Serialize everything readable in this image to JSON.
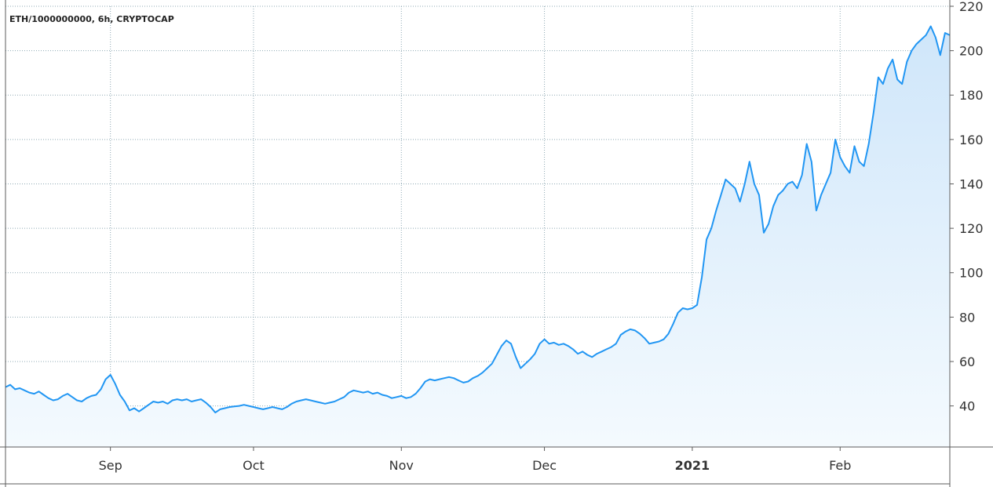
{
  "chart_data": {
    "type": "area",
    "symbol_label": "ETH/1000000000, 6h, CRYPTOCAP",
    "x_tick_labels": [
      {
        "date": "2020-09-01",
        "label": "Sep",
        "bold": false
      },
      {
        "date": "2020-10-01",
        "label": "Oct",
        "bold": false
      },
      {
        "date": "2020-11-01",
        "label": "Nov",
        "bold": false
      },
      {
        "date": "2020-12-01",
        "label": "Dec",
        "bold": false
      },
      {
        "date": "2021-01-01",
        "label": "2021",
        "bold": true
      },
      {
        "date": "2021-02-01",
        "label": "Feb",
        "bold": false
      }
    ],
    "y_ticks": [
      40,
      60,
      80,
      100,
      120,
      140,
      160,
      180,
      200,
      220
    ],
    "xlim": [
      "2020-08-10",
      "2021-02-24"
    ],
    "ylim": [
      21.5,
      220
    ],
    "colors": {
      "line": "#2196f3",
      "fill_top": "#cfe6fa",
      "fill_bottom": "#f4fafe"
    },
    "series": [
      {
        "points": [
          [
            "2020-08-10",
            48.5
          ],
          [
            "2020-08-11",
            49.5
          ],
          [
            "2020-08-12",
            47.5
          ],
          [
            "2020-08-13",
            48.0
          ],
          [
            "2020-08-14",
            47.0
          ],
          [
            "2020-08-15",
            46.0
          ],
          [
            "2020-08-16",
            45.5
          ],
          [
            "2020-08-17",
            46.5
          ],
          [
            "2020-08-18",
            45.0
          ],
          [
            "2020-08-19",
            43.5
          ],
          [
            "2020-08-20",
            42.5
          ],
          [
            "2020-08-21",
            43.0
          ],
          [
            "2020-08-22",
            44.5
          ],
          [
            "2020-08-23",
            45.5
          ],
          [
            "2020-08-24",
            44.0
          ],
          [
            "2020-08-25",
            42.5
          ],
          [
            "2020-08-26",
            42.0
          ],
          [
            "2020-08-27",
            43.5
          ],
          [
            "2020-08-28",
            44.5
          ],
          [
            "2020-08-29",
            45.0
          ],
          [
            "2020-08-30",
            47.5
          ],
          [
            "2020-08-31",
            52.0
          ],
          [
            "2020-09-01",
            54.0
          ],
          [
            "2020-09-02",
            50.0
          ],
          [
            "2020-09-03",
            45.0
          ],
          [
            "2020-09-04",
            42.0
          ],
          [
            "2020-09-05",
            38.0
          ],
          [
            "2020-09-06",
            39.0
          ],
          [
            "2020-09-07",
            37.5
          ],
          [
            "2020-09-08",
            39.0
          ],
          [
            "2020-09-09",
            40.5
          ],
          [
            "2020-09-10",
            42.0
          ],
          [
            "2020-09-11",
            41.5
          ],
          [
            "2020-09-12",
            42.0
          ],
          [
            "2020-09-13",
            41.0
          ],
          [
            "2020-09-14",
            42.5
          ],
          [
            "2020-09-15",
            43.0
          ],
          [
            "2020-09-16",
            42.5
          ],
          [
            "2020-09-17",
            43.0
          ],
          [
            "2020-09-18",
            42.0
          ],
          [
            "2020-09-19",
            42.5
          ],
          [
            "2020-09-20",
            43.0
          ],
          [
            "2020-09-21",
            41.5
          ],
          [
            "2020-09-22",
            39.5
          ],
          [
            "2020-09-23",
            37.0
          ],
          [
            "2020-09-24",
            38.5
          ],
          [
            "2020-09-25",
            39.0
          ],
          [
            "2020-09-26",
            39.5
          ],
          [
            "2020-09-27",
            39.8
          ],
          [
            "2020-09-28",
            40.0
          ],
          [
            "2020-09-29",
            40.5
          ],
          [
            "2020-09-30",
            40.0
          ],
          [
            "2020-10-01",
            39.5
          ],
          [
            "2020-10-02",
            39.0
          ],
          [
            "2020-10-03",
            38.5
          ],
          [
            "2020-10-04",
            39.0
          ],
          [
            "2020-10-05",
            39.5
          ],
          [
            "2020-10-06",
            39.0
          ],
          [
            "2020-10-07",
            38.5
          ],
          [
            "2020-10-08",
            39.5
          ],
          [
            "2020-10-09",
            41.0
          ],
          [
            "2020-10-10",
            42.0
          ],
          [
            "2020-10-11",
            42.5
          ],
          [
            "2020-10-12",
            43.0
          ],
          [
            "2020-10-13",
            42.5
          ],
          [
            "2020-10-14",
            42.0
          ],
          [
            "2020-10-15",
            41.5
          ],
          [
            "2020-10-16",
            41.0
          ],
          [
            "2020-10-17",
            41.5
          ],
          [
            "2020-10-18",
            42.0
          ],
          [
            "2020-10-19",
            43.0
          ],
          [
            "2020-10-20",
            44.0
          ],
          [
            "2020-10-21",
            46.0
          ],
          [
            "2020-10-22",
            47.0
          ],
          [
            "2020-10-23",
            46.5
          ],
          [
            "2020-10-24",
            46.0
          ],
          [
            "2020-10-25",
            46.5
          ],
          [
            "2020-10-26",
            45.5
          ],
          [
            "2020-10-27",
            46.0
          ],
          [
            "2020-10-28",
            45.0
          ],
          [
            "2020-10-29",
            44.5
          ],
          [
            "2020-10-30",
            43.5
          ],
          [
            "2020-10-31",
            44.0
          ],
          [
            "2020-11-01",
            44.5
          ],
          [
            "2020-11-02",
            43.5
          ],
          [
            "2020-11-03",
            44.0
          ],
          [
            "2020-11-04",
            45.5
          ],
          [
            "2020-11-05",
            48.0
          ],
          [
            "2020-11-06",
            51.0
          ],
          [
            "2020-11-07",
            52.0
          ],
          [
            "2020-11-08",
            51.5
          ],
          [
            "2020-11-09",
            52.0
          ],
          [
            "2020-11-10",
            52.5
          ],
          [
            "2020-11-11",
            53.0
          ],
          [
            "2020-11-12",
            52.5
          ],
          [
            "2020-11-13",
            51.5
          ],
          [
            "2020-11-14",
            50.5
          ],
          [
            "2020-11-15",
            51.0
          ],
          [
            "2020-11-16",
            52.5
          ],
          [
            "2020-11-17",
            53.5
          ],
          [
            "2020-11-18",
            55.0
          ],
          [
            "2020-11-19",
            57.0
          ],
          [
            "2020-11-20",
            59.0
          ],
          [
            "2020-11-21",
            63.0
          ],
          [
            "2020-11-22",
            67.0
          ],
          [
            "2020-11-23",
            69.5
          ],
          [
            "2020-11-24",
            68.0
          ],
          [
            "2020-11-25",
            62.0
          ],
          [
            "2020-11-26",
            57.0
          ],
          [
            "2020-11-27",
            59.0
          ],
          [
            "2020-11-28",
            61.0
          ],
          [
            "2020-11-29",
            63.5
          ],
          [
            "2020-11-30",
            68.0
          ],
          [
            "2020-12-01",
            70.0
          ],
          [
            "2020-12-02",
            68.0
          ],
          [
            "2020-12-03",
            68.5
          ],
          [
            "2020-12-04",
            67.5
          ],
          [
            "2020-12-05",
            68.0
          ],
          [
            "2020-12-06",
            67.0
          ],
          [
            "2020-12-07",
            65.5
          ],
          [
            "2020-12-08",
            63.5
          ],
          [
            "2020-12-09",
            64.5
          ],
          [
            "2020-12-10",
            63.0
          ],
          [
            "2020-12-11",
            62.0
          ],
          [
            "2020-12-12",
            63.5
          ],
          [
            "2020-12-13",
            64.5
          ],
          [
            "2020-12-14",
            65.5
          ],
          [
            "2020-12-15",
            66.5
          ],
          [
            "2020-12-16",
            68.0
          ],
          [
            "2020-12-17",
            72.0
          ],
          [
            "2020-12-18",
            73.5
          ],
          [
            "2020-12-19",
            74.5
          ],
          [
            "2020-12-20",
            74.0
          ],
          [
            "2020-12-21",
            72.5
          ],
          [
            "2020-12-22",
            70.5
          ],
          [
            "2020-12-23",
            68.0
          ],
          [
            "2020-12-24",
            68.5
          ],
          [
            "2020-12-25",
            69.0
          ],
          [
            "2020-12-26",
            70.0
          ],
          [
            "2020-12-27",
            72.5
          ],
          [
            "2020-12-28",
            77.0
          ],
          [
            "2020-12-29",
            82.0
          ],
          [
            "2020-12-30",
            84.0
          ],
          [
            "2020-12-31",
            83.5
          ],
          [
            "2021-01-01",
            84.0
          ],
          [
            "2021-01-02",
            85.5
          ],
          [
            "2021-01-03",
            98.0
          ],
          [
            "2021-01-04",
            115.0
          ],
          [
            "2021-01-05",
            120.0
          ],
          [
            "2021-01-06",
            128.0
          ],
          [
            "2021-01-07",
            135.0
          ],
          [
            "2021-01-08",
            142.0
          ],
          [
            "2021-01-09",
            140.0
          ],
          [
            "2021-01-10",
            138.0
          ],
          [
            "2021-01-11",
            132.0
          ],
          [
            "2021-01-12",
            140.0
          ],
          [
            "2021-01-13",
            150.0
          ],
          [
            "2021-01-14",
            140.0
          ],
          [
            "2021-01-15",
            135.0
          ],
          [
            "2021-01-16",
            118.0
          ],
          [
            "2021-01-17",
            122.0
          ],
          [
            "2021-01-18",
            130.0
          ],
          [
            "2021-01-19",
            135.0
          ],
          [
            "2021-01-20",
            137.0
          ],
          [
            "2021-01-21",
            140.0
          ],
          [
            "2021-01-22",
            141.0
          ],
          [
            "2021-01-23",
            138.0
          ],
          [
            "2021-01-24",
            144.0
          ],
          [
            "2021-01-25",
            158.0
          ],
          [
            "2021-01-26",
            150.0
          ],
          [
            "2021-01-27",
            128.0
          ],
          [
            "2021-01-28",
            135.0
          ],
          [
            "2021-01-29",
            140.0
          ],
          [
            "2021-01-30",
            145.0
          ],
          [
            "2021-01-31",
            160.0
          ],
          [
            "2021-02-01",
            152.0
          ],
          [
            "2021-02-02",
            148.0
          ],
          [
            "2021-02-03",
            145.0
          ],
          [
            "2021-02-04",
            157.0
          ],
          [
            "2021-02-05",
            150.0
          ],
          [
            "2021-02-06",
            148.0
          ],
          [
            "2021-02-07",
            158.0
          ],
          [
            "2021-02-08",
            172.0
          ],
          [
            "2021-02-09",
            188.0
          ],
          [
            "2021-02-10",
            185.0
          ],
          [
            "2021-02-11",
            192.0
          ],
          [
            "2021-02-12",
            196.0
          ],
          [
            "2021-02-13",
            187.0
          ],
          [
            "2021-02-14",
            185.0
          ],
          [
            "2021-02-15",
            195.0
          ],
          [
            "2021-02-16",
            200.0
          ],
          [
            "2021-02-17",
            203.0
          ],
          [
            "2021-02-18",
            205.0
          ],
          [
            "2021-02-19",
            207.0
          ],
          [
            "2021-02-20",
            211.0
          ],
          [
            "2021-02-21",
            206.0
          ],
          [
            "2021-02-22",
            198.0
          ],
          [
            "2021-02-23",
            208.0
          ],
          [
            "2021-02-24",
            207.0
          ]
        ]
      }
    ]
  }
}
